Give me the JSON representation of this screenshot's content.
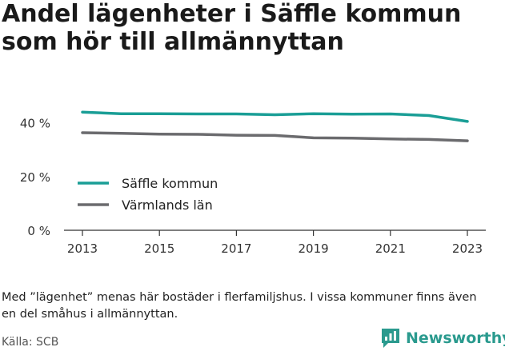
{
  "header": {
    "title": "Andel lägenheter i Säffle kommun som hör till allmännyttan"
  },
  "chart_data": {
    "type": "line",
    "title": "Andel lägenheter i Säffle kommun som hör till allmännyttan",
    "x": [
      2013,
      2014,
      2015,
      2016,
      2017,
      2018,
      2019,
      2020,
      2021,
      2022,
      2023
    ],
    "x_ticks": [
      "2013",
      "2015",
      "2017",
      "2019",
      "2021",
      "2023"
    ],
    "y_ticks": [
      "0 %",
      "20 %",
      "40 %"
    ],
    "ylim": [
      0,
      50
    ],
    "grid": false,
    "legend_position": "bottom-left",
    "series": [
      {
        "name": "Säffle kommun",
        "color": "#1a9e96",
        "values": [
          44.0,
          43.4,
          43.4,
          43.3,
          43.3,
          43.0,
          43.4,
          43.2,
          43.3,
          42.7,
          40.5
        ]
      },
      {
        "name": "Värmlands län",
        "color": "#6b6b6e",
        "values": [
          36.3,
          36.1,
          35.8,
          35.7,
          35.4,
          35.3,
          34.4,
          34.3,
          34.0,
          33.8,
          33.3
        ]
      }
    ]
  },
  "footer": {
    "note": "Med ”lägenhet” menas här bostäder i flerfamiljshus. I vissa kommuner finns även en del småhus i allmännyttan.",
    "source": "Källa: SCB",
    "brand": "Newsworthy"
  }
}
